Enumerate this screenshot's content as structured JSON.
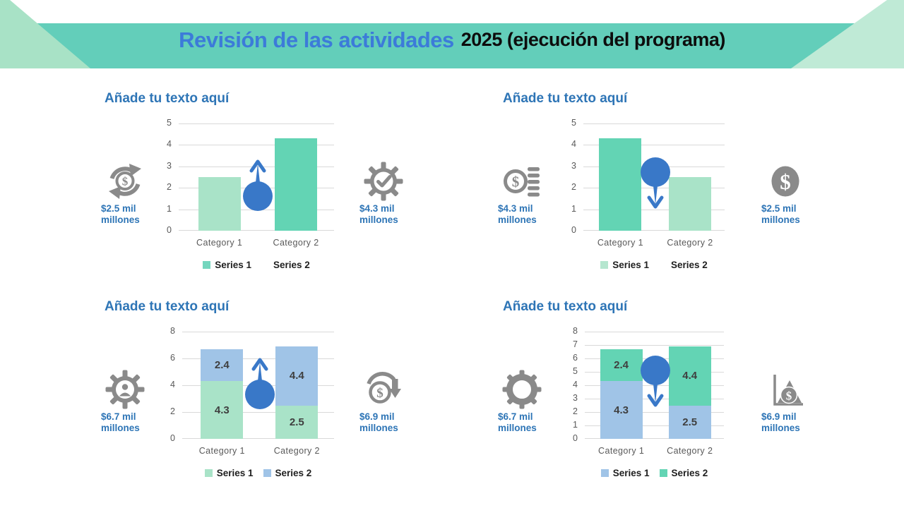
{
  "slide": {
    "title_highlight": "Revisión de las actividades",
    "title_rest": "2025 (ejecución del programa)"
  },
  "colors": {
    "banner": "#63CEBA",
    "triangle_left": "#A8E2C6",
    "triangle_right": "#BFEAD6",
    "title_blue": "#3C7BD9",
    "heading_blue": "#2E75B6",
    "bar_light_green": "#A9E3C8",
    "bar_teal": "#63D4B4",
    "bar_light_blue": "#A0C4E7",
    "marker_blue": "#3978C8",
    "icon_gray": "#8A8A8A",
    "gridline_gray": "#D9D9D9"
  },
  "panels": [
    {
      "title": "Añade tu texto aquí",
      "left_stat": {
        "icon": "money-cycle-icon",
        "value": "$2.5 mil",
        "unit": "millones"
      },
      "right_stat": {
        "icon": "gear-check-icon",
        "value": "$4.3 mil",
        "unit": "millones"
      }
    },
    {
      "title": "Añade tu texto aquí",
      "left_stat": {
        "icon": "dollar-coins-icon",
        "value": "$4.3 mil",
        "unit": "millones"
      },
      "right_stat": {
        "icon": "dollar-circle-icon",
        "value": "$2.5 mil",
        "unit": "millones"
      }
    },
    {
      "title": "Añade tu texto aquí",
      "left_stat": {
        "icon": "gear-person-icon",
        "value": "$6.7 mil",
        "unit": "millones"
      },
      "right_stat": {
        "icon": "dollar-cycle-down-icon",
        "value": "$6.9 mil",
        "unit": "millones"
      }
    },
    {
      "title": "Añade tu texto aquí",
      "left_stat": {
        "icon": "gear-icon",
        "value": "$6.7 mil",
        "unit": "millones"
      },
      "right_stat": {
        "icon": "chart-dollar-icon",
        "value": "$6.9 mil",
        "unit": "millones"
      }
    }
  ],
  "chart_data": [
    {
      "type": "bar",
      "categories": [
        "Category 1",
        "Category 2"
      ],
      "values": [
        2.5,
        4.3
      ],
      "bar_colors": [
        "#A9E3C8",
        "#63D4B4"
      ],
      "ylim": [
        0,
        5
      ],
      "yticks": [
        0,
        1,
        2,
        3,
        4,
        5
      ],
      "grid": true,
      "legend_position": "bottom",
      "legend": [
        {
          "label": "Series 1",
          "color": "#74D6BE"
        },
        {
          "label": "Series 2",
          "color": "transparent"
        }
      ],
      "annotation": "up-arrow"
    },
    {
      "type": "bar",
      "categories": [
        "Category 1",
        "Category 2"
      ],
      "values": [
        4.3,
        2.5
      ],
      "bar_colors": [
        "#63D4B4",
        "#A9E3C8"
      ],
      "ylim": [
        0,
        5
      ],
      "yticks": [
        0,
        1,
        2,
        3,
        4,
        5
      ],
      "grid": true,
      "legend_position": "bottom",
      "legend": [
        {
          "label": "Series 1",
          "color": "#B5E6CF"
        },
        {
          "label": "Series 2",
          "color": "transparent"
        }
      ],
      "annotation": "down-arrow"
    },
    {
      "type": "stacked-bar",
      "categories": [
        "Category 1",
        "Category 2"
      ],
      "series": [
        {
          "name": "Series 1",
          "color": "#A9E3C8",
          "values": [
            4.3,
            2.5
          ]
        },
        {
          "name": "Series 2",
          "color": "#A0C4E7",
          "values": [
            2.4,
            4.4
          ]
        }
      ],
      "ylim": [
        0,
        8
      ],
      "yticks": [
        0,
        2,
        4,
        6,
        8
      ],
      "grid": true,
      "data_labels": true,
      "legend_position": "bottom",
      "legend": [
        {
          "label": "Series 1",
          "color": "#A9E3C8"
        },
        {
          "label": "Series 2",
          "color": "#A0C4E7"
        }
      ],
      "annotation": "up-arrow"
    },
    {
      "type": "stacked-bar",
      "categories": [
        "Category 1",
        "Category 2"
      ],
      "series": [
        {
          "name": "Series 1",
          "color": "#A0C4E7",
          "values": [
            4.3,
            2.5
          ]
        },
        {
          "name": "Series 2",
          "color": "#63D4B4",
          "values": [
            2.4,
            4.4
          ]
        }
      ],
      "ylim": [
        0,
        8
      ],
      "yticks": [
        0,
        1,
        2,
        3,
        4,
        5,
        6,
        7,
        8
      ],
      "grid": true,
      "data_labels": true,
      "legend_position": "bottom",
      "legend": [
        {
          "label": "Series 1",
          "color": "#A0C4E7"
        },
        {
          "label": "Series 2",
          "color": "#63D4B4"
        }
      ],
      "annotation": "down-arrow"
    }
  ]
}
